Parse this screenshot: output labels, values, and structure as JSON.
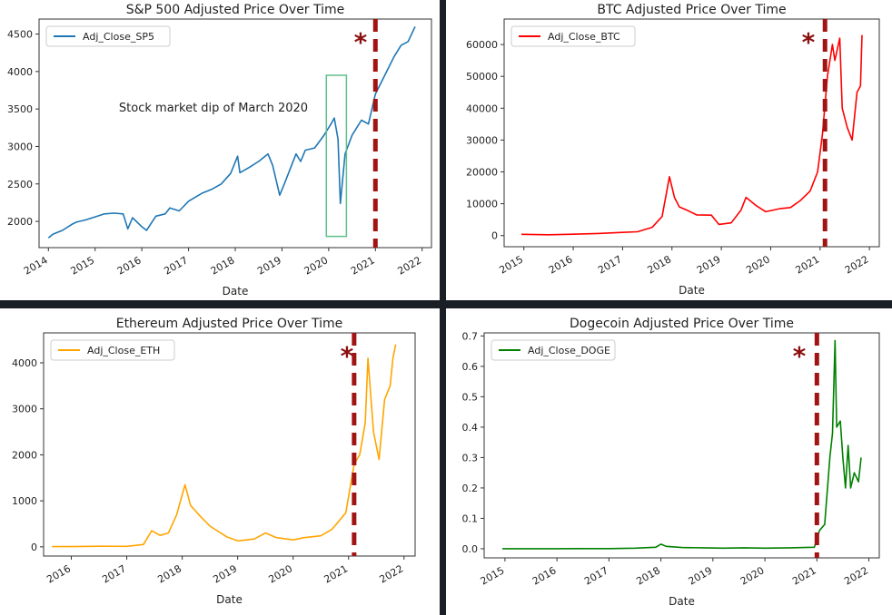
{
  "chart_data": [
    {
      "type": "line",
      "title": "S&P 500 Adjusted Price Over Time",
      "xlabel": "Date",
      "ylabel": "",
      "legend": "top-left",
      "xlim": [
        2013.8,
        2022.2
      ],
      "ylim": [
        1650,
        4700
      ],
      "yticks": [
        2000,
        2500,
        3000,
        3500,
        4000,
        4500
      ],
      "xticks": [
        2014,
        2015,
        2016,
        2017,
        2018,
        2019,
        2020,
        2021,
        2022
      ],
      "series": [
        {
          "name": "Adj_Close_SP5",
          "color": "#1f77b4",
          "x": [
            2014.0,
            2014.1,
            2014.3,
            2014.5,
            2014.6,
            2014.8,
            2015.0,
            2015.2,
            2015.4,
            2015.6,
            2015.7,
            2015.8,
            2016.0,
            2016.1,
            2016.3,
            2016.5,
            2016.6,
            2016.8,
            2017.0,
            2017.3,
            2017.5,
            2017.7,
            2017.9,
            2018.05,
            2018.1,
            2018.3,
            2018.5,
            2018.7,
            2018.8,
            2018.95,
            2019.05,
            2019.3,
            2019.4,
            2019.5,
            2019.7,
            2019.9,
            2020.05,
            2020.12,
            2020.2,
            2020.25,
            2020.35,
            2020.5,
            2020.7,
            2020.85,
            2021.0,
            2021.2,
            2021.4,
            2021.55,
            2021.7,
            2021.85
          ],
          "y": [
            1780,
            1830,
            1880,
            1960,
            1990,
            2020,
            2060,
            2100,
            2110,
            2100,
            1900,
            2050,
            1930,
            1880,
            2070,
            2100,
            2180,
            2140,
            2270,
            2380,
            2430,
            2500,
            2640,
            2870,
            2650,
            2720,
            2800,
            2900,
            2750,
            2350,
            2500,
            2900,
            2800,
            2950,
            2980,
            3150,
            3300,
            3380,
            3100,
            2240,
            2900,
            3150,
            3350,
            3300,
            3700,
            3950,
            4200,
            4350,
            4400,
            4600
          ]
        }
      ],
      "annotations": [
        {
          "text": "Stock market dip of March 2020"
        },
        {
          "text": "*"
        }
      ]
    },
    {
      "type": "line",
      "title": "BTC Adjusted Price Over Time",
      "xlabel": "Date",
      "ylabel": "",
      "legend": "top-left",
      "xlim": [
        2014.6,
        2022.2
      ],
      "ylim": [
        -3500,
        68000
      ],
      "yticks": [
        0,
        10000,
        20000,
        30000,
        40000,
        50000,
        60000
      ],
      "xticks": [
        2015,
        2016,
        2017,
        2018,
        2019,
        2020,
        2021,
        2022
      ],
      "series": [
        {
          "name": "Adj_Close_BTC",
          "color": "#ff0000",
          "x": [
            2014.95,
            2015.5,
            2016.0,
            2016.5,
            2017.0,
            2017.3,
            2017.6,
            2017.8,
            2017.95,
            2018.05,
            2018.15,
            2018.3,
            2018.5,
            2018.8,
            2018.95,
            2019.2,
            2019.4,
            2019.5,
            2019.7,
            2019.9,
            2020.2,
            2020.4,
            2020.6,
            2020.8,
            2020.95,
            2021.05,
            2021.15,
            2021.25,
            2021.3,
            2021.4,
            2021.45,
            2021.55,
            2021.65,
            2021.75,
            2021.82,
            2021.85
          ],
          "y": [
            400,
            250,
            420,
            650,
            1000,
            1200,
            2600,
            6000,
            18500,
            12000,
            9000,
            8000,
            6500,
            6400,
            3500,
            4000,
            8000,
            12000,
            9500,
            7500,
            8500,
            8800,
            11000,
            14000,
            20000,
            32000,
            50000,
            60000,
            55000,
            62000,
            40000,
            34000,
            30000,
            45000,
            47000,
            63000
          ]
        }
      ],
      "annotations": [
        {
          "text": "*"
        }
      ]
    },
    {
      "type": "line",
      "title": "Ethereum Adjusted Price Over Time",
      "xlabel": "Date",
      "ylabel": "",
      "legend": "top-left",
      "xlim": [
        2015.5,
        2022.2
      ],
      "ylim": [
        -200,
        4650
      ],
      "yticks": [
        0,
        1000,
        2000,
        3000,
        4000
      ],
      "xticks": [
        2016,
        2017,
        2018,
        2019,
        2020,
        2021,
        2022
      ],
      "series": [
        {
          "name": "Adj_Close_ETH",
          "color": "#ffa500",
          "x": [
            2015.65,
            2016.0,
            2016.5,
            2017.0,
            2017.3,
            2017.45,
            2017.6,
            2017.75,
            2017.9,
            2018.05,
            2018.15,
            2018.3,
            2018.5,
            2018.8,
            2019.0,
            2019.3,
            2019.5,
            2019.7,
            2020.0,
            2020.2,
            2020.5,
            2020.7,
            2020.95,
            2021.1,
            2021.2,
            2021.3,
            2021.35,
            2021.45,
            2021.55,
            2021.65,
            2021.75,
            2021.8,
            2021.85
          ],
          "y": [
            5,
            5,
            12,
            10,
            50,
            350,
            250,
            300,
            700,
            1350,
            900,
            700,
            450,
            220,
            130,
            170,
            300,
            200,
            150,
            200,
            240,
            380,
            740,
            1800,
            2000,
            2700,
            4100,
            2500,
            1900,
            3200,
            3500,
            4100,
            4400
          ]
        }
      ],
      "annotations": [
        {
          "text": "*"
        }
      ]
    },
    {
      "type": "line",
      "title": "Dogecoin Adjusted Price Over Time",
      "xlabel": "Date",
      "ylabel": "",
      "legend": "top-left",
      "xlim": [
        2014.6,
        2022.2
      ],
      "ylim": [
        -0.03,
        0.71
      ],
      "yticks": [
        0.0,
        0.1,
        0.2,
        0.3,
        0.4,
        0.5,
        0.6,
        0.7
      ],
      "xticks": [
        2015,
        2016,
        2017,
        2018,
        2019,
        2020,
        2021,
        2022
      ],
      "series": [
        {
          "name": "Adj_Close_DOGE",
          "color": "#008000",
          "x": [
            2014.95,
            2015.5,
            2016.0,
            2016.5,
            2017.0,
            2017.5,
            2017.9,
            2018.0,
            2018.1,
            2018.4,
            2018.8,
            2019.2,
            2019.6,
            2020.0,
            2020.5,
            2020.95,
            2021.05,
            2021.15,
            2021.25,
            2021.3,
            2021.35,
            2021.38,
            2021.45,
            2021.5,
            2021.55,
            2021.6,
            2021.65,
            2021.72,
            2021.8,
            2021.85
          ],
          "y": [
            0.0002,
            0.0001,
            0.0002,
            0.0003,
            0.0005,
            0.002,
            0.005,
            0.015,
            0.008,
            0.004,
            0.003,
            0.002,
            0.003,
            0.002,
            0.003,
            0.005,
            0.06,
            0.08,
            0.3,
            0.38,
            0.685,
            0.4,
            0.42,
            0.3,
            0.2,
            0.34,
            0.2,
            0.25,
            0.22,
            0.3
          ]
        }
      ],
      "annotations": [
        {
          "text": "*"
        }
      ]
    }
  ]
}
